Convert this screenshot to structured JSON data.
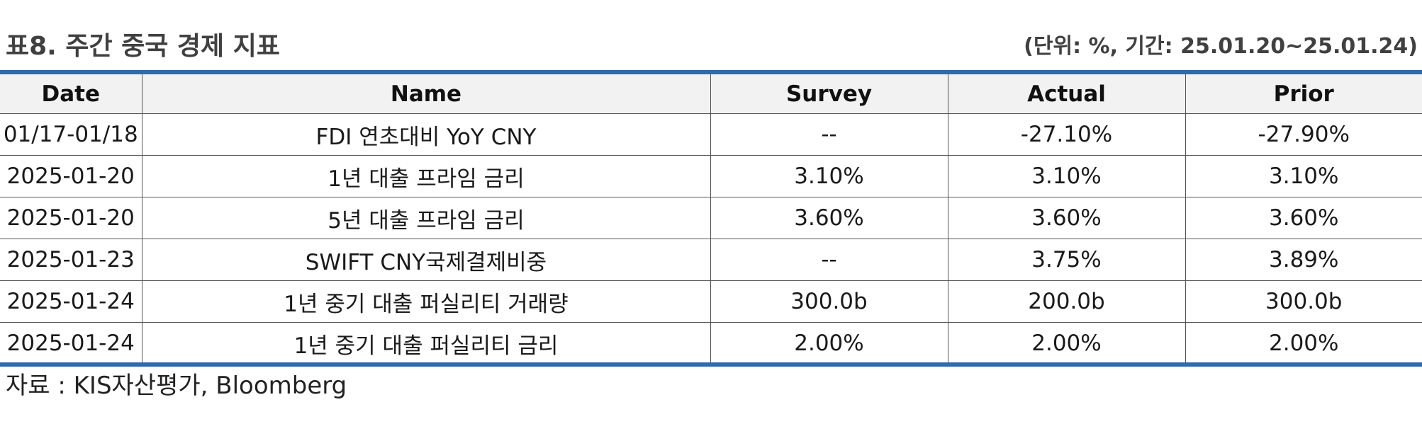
{
  "header": {
    "title": "표8. 주간 중국 경제 지표",
    "unit_note": "(단위: %, 기간: 25.01.20~25.01.24)"
  },
  "colors": {
    "accent": "#2e6aad",
    "header_bg": "#f2f2f2",
    "grid": "#555555"
  },
  "table": {
    "columns": [
      "Date",
      "Name",
      "Survey",
      "Actual",
      "Prior"
    ],
    "rows": [
      [
        "01/17-01/18",
        "FDI 연초대비 YoY CNY",
        "--",
        "-27.10%",
        "-27.90%"
      ],
      [
        "2025-01-20",
        "1년 대출 프라임 금리",
        "3.10%",
        "3.10%",
        "3.10%"
      ],
      [
        "2025-01-20",
        "5년 대출 프라임 금리",
        "3.60%",
        "3.60%",
        "3.60%"
      ],
      [
        "2025-01-23",
        "SWIFT CNY국제결제비중",
        "--",
        "3.75%",
        "3.89%"
      ],
      [
        "2025-01-24",
        "1년 중기 대출 퍼실리티 거래량",
        "300.0b",
        "200.0b",
        "300.0b"
      ],
      [
        "2025-01-24",
        "1년 중기 대출 퍼실리티 금리",
        "2.00%",
        "2.00%",
        "2.00%"
      ]
    ]
  },
  "footer": {
    "source": "자료 : KIS자산평가, Bloomberg"
  }
}
